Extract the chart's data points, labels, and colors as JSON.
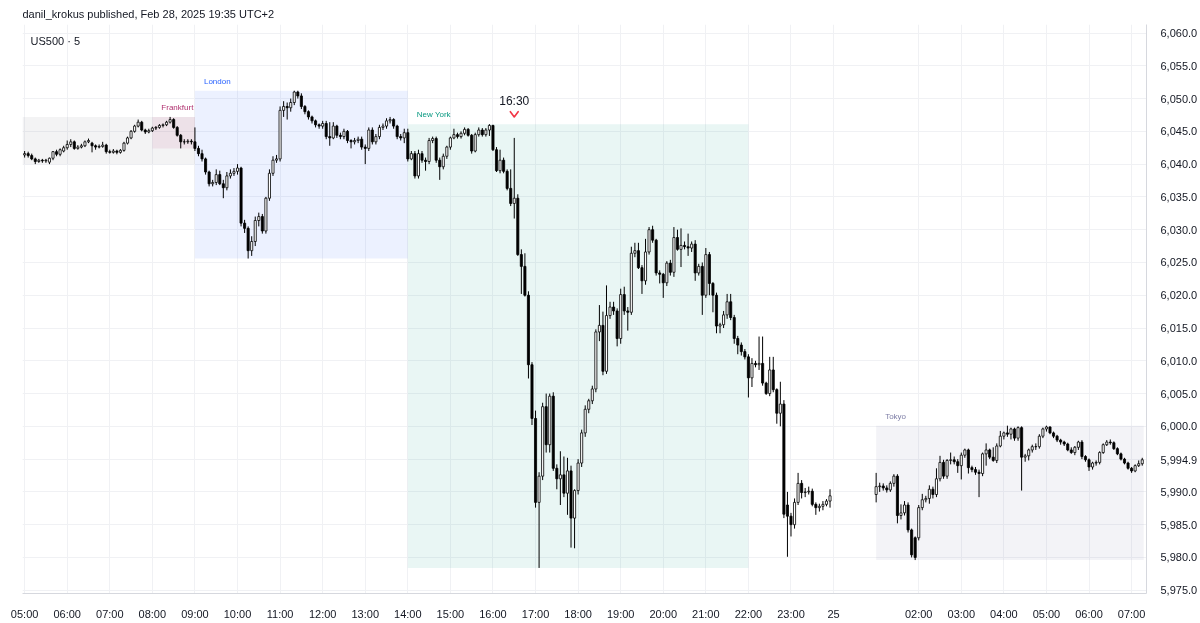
{
  "chart_data": {
    "type": "candlestick",
    "title": "US500 · 5",
    "annotations": [
      "danil_krokus published, Feb 28, 2025 19:35 UTC+2",
      {
        "text": "16:30",
        "x": "2025-02-24T16:30",
        "y": 6044.0
      }
    ],
    "xlim": [
      "2025-02-24T04:57",
      "2025-02-25T07:21"
    ],
    "ylim": [
      5974.5,
      6061.3
    ],
    "xticks": [
      {
        "value": "2025-02-24T05:00",
        "label": "05:00"
      },
      {
        "value": "2025-02-24T06:00",
        "label": "06:00"
      },
      {
        "value": "2025-02-24T07:00",
        "label": "07:00"
      },
      {
        "value": "2025-02-24T08:00",
        "label": "08:00"
      },
      {
        "value": "2025-02-24T09:00",
        "label": "09:00"
      },
      {
        "value": "2025-02-24T10:00",
        "label": "10:00"
      },
      {
        "value": "2025-02-24T11:00",
        "label": "11:00"
      },
      {
        "value": "2025-02-24T12:00",
        "label": "12:00"
      },
      {
        "value": "2025-02-24T13:00",
        "label": "13:00"
      },
      {
        "value": "2025-02-24T14:00",
        "label": "14:00"
      },
      {
        "value": "2025-02-24T15:00",
        "label": "15:00"
      },
      {
        "value": "2025-02-24T16:00",
        "label": "16:00"
      },
      {
        "value": "2025-02-24T17:00",
        "label": "17:00"
      },
      {
        "value": "2025-02-24T18:00",
        "label": "18:00"
      },
      {
        "value": "2025-02-24T19:00",
        "label": "19:00"
      },
      {
        "value": "2025-02-24T20:00",
        "label": "20:00"
      },
      {
        "value": "2025-02-24T21:00",
        "label": "21:00"
      },
      {
        "value": "2025-02-24T22:00",
        "label": "22:00"
      },
      {
        "value": "2025-02-24T23:00",
        "label": "23:00"
      },
      {
        "value": "2025-02-25",
        "label": "25"
      },
      {
        "value": "2025-02-25T02:00",
        "label": "02:00"
      },
      {
        "value": "2025-02-25T03:00",
        "label": "03:00"
      },
      {
        "value": "2025-02-25T04:00",
        "label": "04:00"
      },
      {
        "value": "2025-02-25T05:00",
        "label": "05:00"
      },
      {
        "value": "2025-02-25T06:00",
        "label": "06:00"
      },
      {
        "value": "2025-02-25T07:00",
        "label": "07:00"
      }
    ],
    "yticks": [
      {
        "value": 5975,
        "label": "5,975.0"
      },
      {
        "value": 5980,
        "label": "5,980.0"
      },
      {
        "value": 5985,
        "label": "5,985.0"
      },
      {
        "value": 5990,
        "label": "5,990.0"
      },
      {
        "value": 5994.9,
        "label": "5,994.9"
      },
      {
        "value": 5995,
        "label": null
      },
      {
        "value": 6000,
        "label": "6,000.0"
      },
      {
        "value": 6005,
        "label": "6,005.0"
      },
      {
        "value": 6010,
        "label": "6,010.0"
      },
      {
        "value": 6015,
        "label": "6,015.0"
      },
      {
        "value": 6020,
        "label": "6,020.0"
      },
      {
        "value": 6025,
        "label": "6,025.0"
      },
      {
        "value": 6030,
        "label": "6,030.0"
      },
      {
        "value": 6035,
        "label": "6,035.0"
      },
      {
        "value": 6040,
        "label": "6,040.0"
      },
      {
        "value": 6045,
        "label": "6,045.0"
      },
      {
        "value": 6050,
        "label": "6,050.0"
      },
      {
        "value": 6055,
        "label": "6,055.0"
      },
      {
        "value": 6060,
        "label": "6,060.0"
      }
    ],
    "grid": true,
    "color": "#000000",
    "bands": [
      {
        "axis": "x",
        "from": "2025-02-24T04:57",
        "to": "2025-02-24T09:00",
        "color": "#787b86"
      },
      {
        "axis": "x",
        "from": "2025-02-24T08:00",
        "to": "2025-02-24T09:00",
        "label": "Frankfurt",
        "color": "#b0316f"
      },
      {
        "axis": "x",
        "from": "2025-02-24T09:00",
        "to": "2025-02-24T14:00",
        "label": "London",
        "color": "#2962ff"
      },
      {
        "axis": "x",
        "from": "2025-02-24T14:00",
        "to": "2025-02-24T22:00",
        "label": "New York",
        "color": "#089981"
      },
      {
        "axis": "x",
        "from": "2025-02-25T01:00",
        "to": "2025-02-25T07:17",
        "label": "Tokyo",
        "color": "#7e7ea6"
      }
    ],
    "x": [
      "2025-02-24T05:00",
      "2025-02-24T05:05",
      "2025-02-24T05:10",
      "2025-02-24T05:15",
      "2025-02-24T05:20",
      "2025-02-24T05:25",
      "2025-02-24T05:30",
      "2025-02-24T05:35",
      "2025-02-24T05:40",
      "2025-02-24T05:45",
      "2025-02-24T05:50",
      "2025-02-24T05:55",
      "2025-02-24T06:00",
      "2025-02-24T06:05",
      "2025-02-24T06:10",
      "2025-02-24T06:15",
      "2025-02-24T06:20",
      "2025-02-24T06:25",
      "2025-02-24T06:30",
      "2025-02-24T06:35",
      "2025-02-24T06:40",
      "2025-02-24T06:45",
      "2025-02-24T06:50",
      "2025-02-24T06:55",
      "2025-02-24T07:00",
      "2025-02-24T07:05",
      "2025-02-24T07:10",
      "2025-02-24T07:15",
      "2025-02-24T07:20",
      "2025-02-24T07:25",
      "2025-02-24T07:30",
      "2025-02-24T07:35",
      "2025-02-24T07:40",
      "2025-02-24T07:45",
      "2025-02-24T07:50",
      "2025-02-24T07:55",
      "2025-02-24T08:00",
      "2025-02-24T08:05",
      "2025-02-24T08:10",
      "2025-02-24T08:15",
      "2025-02-24T08:20",
      "2025-02-24T08:25",
      "2025-02-24T08:30",
      "2025-02-24T08:35",
      "2025-02-24T08:40",
      "2025-02-24T08:45",
      "2025-02-24T08:50",
      "2025-02-24T08:55",
      "2025-02-24T09:00",
      "2025-02-24T09:05",
      "2025-02-24T09:10",
      "2025-02-24T09:15",
      "2025-02-24T09:20",
      "2025-02-24T09:25",
      "2025-02-24T09:30",
      "2025-02-24T09:35",
      "2025-02-24T09:40",
      "2025-02-24T09:45",
      "2025-02-24T09:50",
      "2025-02-24T09:55",
      "2025-02-24T10:00",
      "2025-02-24T10:05",
      "2025-02-24T10:10",
      "2025-02-24T10:15",
      "2025-02-24T10:20",
      "2025-02-24T10:25",
      "2025-02-24T10:30",
      "2025-02-24T10:35",
      "2025-02-24T10:40",
      "2025-02-24T10:45",
      "2025-02-24T10:50",
      "2025-02-24T10:55",
      "2025-02-24T11:00",
      "2025-02-24T11:05",
      "2025-02-24T11:10",
      "2025-02-24T11:15",
      "2025-02-24T11:20",
      "2025-02-24T11:25",
      "2025-02-24T11:30",
      "2025-02-24T11:35",
      "2025-02-24T11:40",
      "2025-02-24T11:45",
      "2025-02-24T11:50",
      "2025-02-24T11:55",
      "2025-02-24T12:00",
      "2025-02-24T12:05",
      "2025-02-24T12:10",
      "2025-02-24T12:15",
      "2025-02-24T12:20",
      "2025-02-24T12:25",
      "2025-02-24T12:30",
      "2025-02-24T12:35",
      "2025-02-24T12:40",
      "2025-02-24T12:45",
      "2025-02-24T12:50",
      "2025-02-24T12:55",
      "2025-02-24T13:00",
      "2025-02-24T13:05",
      "2025-02-24T13:10",
      "2025-02-24T13:15",
      "2025-02-24T13:20",
      "2025-02-24T13:25",
      "2025-02-24T13:30",
      "2025-02-24T13:35",
      "2025-02-24T13:40",
      "2025-02-24T13:45",
      "2025-02-24T13:50",
      "2025-02-24T13:55",
      "2025-02-24T14:00",
      "2025-02-24T14:05",
      "2025-02-24T14:10",
      "2025-02-24T14:15",
      "2025-02-24T14:20",
      "2025-02-24T14:25",
      "2025-02-24T14:30",
      "2025-02-24T14:35",
      "2025-02-24T14:40",
      "2025-02-24T14:45",
      "2025-02-24T14:50",
      "2025-02-24T14:55",
      "2025-02-24T15:00",
      "2025-02-24T15:05",
      "2025-02-24T15:10",
      "2025-02-24T15:15",
      "2025-02-24T15:20",
      "2025-02-24T15:25",
      "2025-02-24T15:30",
      "2025-02-24T15:35",
      "2025-02-24T15:40",
      "2025-02-24T15:45",
      "2025-02-24T15:50",
      "2025-02-24T15:55",
      "2025-02-24T16:00",
      "2025-02-24T16:05",
      "2025-02-24T16:10",
      "2025-02-24T16:15",
      "2025-02-24T16:20",
      "2025-02-24T16:25",
      "2025-02-24T16:30",
      "2025-02-24T16:35",
      "2025-02-24T16:40",
      "2025-02-24T16:45",
      "2025-02-24T16:50",
      "2025-02-24T16:55",
      "2025-02-24T17:00",
      "2025-02-24T17:05",
      "2025-02-24T17:10",
      "2025-02-24T17:15",
      "2025-02-24T17:20",
      "2025-02-24T17:25",
      "2025-02-24T17:30",
      "2025-02-24T17:35",
      "2025-02-24T17:40",
      "2025-02-24T17:45",
      "2025-02-24T17:50",
      "2025-02-24T17:55",
      "2025-02-24T18:00",
      "2025-02-24T18:05",
      "2025-02-24T18:10",
      "2025-02-24T18:15",
      "2025-02-24T18:20",
      "2025-02-24T18:25",
      "2025-02-24T18:30",
      "2025-02-24T18:35",
      "2025-02-24T18:40",
      "2025-02-24T18:45",
      "2025-02-24T18:50",
      "2025-02-24T18:55",
      "2025-02-24T19:00",
      "2025-02-24T19:05",
      "2025-02-24T19:10",
      "2025-02-24T19:15",
      "2025-02-24T19:20",
      "2025-02-24T19:25",
      "2025-02-24T19:30",
      "2025-02-24T19:35",
      "2025-02-24T19:40",
      "2025-02-24T19:45",
      "2025-02-24T19:50",
      "2025-02-24T19:55",
      "2025-02-24T20:00",
      "2025-02-24T20:05",
      "2025-02-24T20:10",
      "2025-02-24T20:15",
      "2025-02-24T20:20",
      "2025-02-24T20:25",
      "2025-02-24T20:30",
      "2025-02-24T20:35",
      "2025-02-24T20:40",
      "2025-02-24T20:45",
      "2025-02-24T20:50",
      "2025-02-24T20:55",
      "2025-02-24T21:00",
      "2025-02-24T21:05",
      "2025-02-24T21:10",
      "2025-02-24T21:15",
      "2025-02-24T21:20",
      "2025-02-24T21:25",
      "2025-02-24T21:30",
      "2025-02-24T21:35",
      "2025-02-24T21:40",
      "2025-02-24T21:45",
      "2025-02-24T21:50",
      "2025-02-24T21:55",
      "2025-02-24T22:00",
      "2025-02-24T22:05",
      "2025-02-24T22:10",
      "2025-02-24T22:15",
      "2025-02-24T22:20",
      "2025-02-24T22:25",
      "2025-02-24T22:30",
      "2025-02-24T22:35",
      "2025-02-24T22:40",
      "2025-02-24T22:45",
      "2025-02-24T22:50",
      "2025-02-24T22:55",
      "2025-02-24T23:00",
      "2025-02-24T23:05",
      "2025-02-24T23:10",
      "2025-02-24T23:15",
      "2025-02-24T23:20",
      "2025-02-24T23:25",
      "2025-02-24T23:30",
      "2025-02-24T23:35",
      "2025-02-24T23:40",
      "2025-02-24T23:45",
      "2025-02-24T23:50",
      "2025-02-24T23:55",
      "2025-02-25T01:00",
      "2025-02-25T01:05",
      "2025-02-25T01:10",
      "2025-02-25T01:15",
      "2025-02-25T01:20",
      "2025-02-25T01:25",
      "2025-02-25T01:30",
      "2025-02-25T01:35",
      "2025-02-25T01:40",
      "2025-02-25T01:45",
      "2025-02-25T01:50",
      "2025-02-25T01:55",
      "2025-02-25T02:00",
      "2025-02-25T02:05",
      "2025-02-25T02:10",
      "2025-02-25T02:15",
      "2025-02-25T02:20",
      "2025-02-25T02:25",
      "2025-02-25T02:30",
      "2025-02-25T02:35",
      "2025-02-25T02:40",
      "2025-02-25T02:45",
      "2025-02-25T02:50",
      "2025-02-25T02:55",
      "2025-02-25T03:00",
      "2025-02-25T03:05",
      "2025-02-25T03:10",
      "2025-02-25T03:15",
      "2025-02-25T03:20",
      "2025-02-25T03:25",
      "2025-02-25T03:30",
      "2025-02-25T03:35",
      "2025-02-25T03:40",
      "2025-02-25T03:45",
      "2025-02-25T03:50",
      "2025-02-25T03:55",
      "2025-02-25T04:00",
      "2025-02-25T04:05",
      "2025-02-25T04:10",
      "2025-02-25T04:15",
      "2025-02-25T04:20",
      "2025-02-25T04:25",
      "2025-02-25T04:30",
      "2025-02-25T04:35",
      "2025-02-25T04:40",
      "2025-02-25T04:45",
      "2025-02-25T04:50",
      "2025-02-25T04:55",
      "2025-02-25T05:00",
      "2025-02-25T05:05",
      "2025-02-25T05:10",
      "2025-02-25T05:15",
      "2025-02-25T05:20",
      "2025-02-25T05:25",
      "2025-02-25T05:30",
      "2025-02-25T05:35",
      "2025-02-25T05:40",
      "2025-02-25T05:45",
      "2025-02-25T05:50",
      "2025-02-25T05:55",
      "2025-02-25T06:00",
      "2025-02-25T06:05",
      "2025-02-25T06:10",
      "2025-02-25T06:15",
      "2025-02-25T06:20",
      "2025-02-25T06:25",
      "2025-02-25T06:30",
      "2025-02-25T06:35",
      "2025-02-25T06:40",
      "2025-02-25T06:45",
      "2025-02-25T06:50",
      "2025-02-25T06:55",
      "2025-02-25T07:00",
      "2025-02-25T07:05",
      "2025-02-25T07:10",
      "2025-02-25T07:15"
    ],
    "ohlc": [
      [
        6041.4,
        6042.0,
        6041.0,
        6041.6
      ],
      [
        6041.6,
        6041.9,
        6041.0,
        6041.3
      ],
      [
        6041.3,
        6041.6,
        6040.6,
        6040.8
      ],
      [
        6040.8,
        6041.0,
        6040.0,
        6040.4
      ],
      [
        6040.4,
        6040.8,
        6040.2,
        6040.6
      ],
      [
        6040.6,
        6040.8,
        6040.2,
        6040.5
      ],
      [
        6040.5,
        6040.8,
        6040.2,
        6040.6
      ],
      [
        6040.3,
        6041.0,
        6040.0,
        6040.9
      ],
      [
        6040.9,
        6042.0,
        6040.6,
        6041.9
      ],
      [
        6041.9,
        6042.2,
        6041.2,
        6041.5
      ],
      [
        6041.5,
        6042.4,
        6041.2,
        6042.2
      ],
      [
        6042.0,
        6042.8,
        6041.8,
        6042.5
      ],
      [
        6042.5,
        6043.6,
        6042.2,
        6043.0
      ],
      [
        6043.0,
        6043.8,
        6042.6,
        6043.4
      ],
      [
        6043.4,
        6043.6,
        6042.2,
        6042.4
      ],
      [
        6042.4,
        6042.9,
        6042.2,
        6042.6
      ],
      [
        6042.6,
        6043.1,
        6042.4,
        6042.8
      ],
      [
        6042.8,
        6043.6,
        6042.6,
        6043.4
      ],
      [
        6043.4,
        6043.9,
        6043.2,
        6043.6
      ],
      [
        6043.2,
        6043.4,
        6041.8,
        6042.8
      ],
      [
        6042.8,
        6043.0,
        6042.2,
        6042.6
      ],
      [
        6042.6,
        6043.0,
        6042.4,
        6042.7
      ],
      [
        6042.7,
        6043.4,
        6042.5,
        6042.9
      ],
      [
        6042.9,
        6043.1,
        6041.6,
        6041.9
      ],
      [
        6041.9,
        6042.2,
        6041.6,
        6041.8
      ],
      [
        6041.8,
        6042.3,
        6041.6,
        6042.0
      ],
      [
        6042.0,
        6042.2,
        6041.5,
        6041.8
      ],
      [
        6041.8,
        6042.3,
        6041.6,
        6042.1
      ],
      [
        6042.1,
        6043.4,
        6041.9,
        6043.2
      ],
      [
        6043.2,
        6044.2,
        6043.0,
        6044.0
      ],
      [
        6044.0,
        6045.2,
        6043.8,
        6045.0
      ],
      [
        6045.0,
        6046.0,
        6044.8,
        6045.8
      ],
      [
        6045.8,
        6046.8,
        6045.6,
        6046.4
      ],
      [
        6046.4,
        6046.6,
        6045.0,
        6045.2
      ],
      [
        6045.2,
        6045.4,
        6044.6,
        6044.9
      ],
      [
        6044.9,
        6045.4,
        6044.7,
        6045.1
      ],
      [
        6045.1,
        6045.7,
        6044.9,
        6045.5
      ],
      [
        6045.5,
        6045.8,
        6045.2,
        6045.6
      ],
      [
        6045.6,
        6046.1,
        6045.4,
        6045.9
      ],
      [
        6045.9,
        6046.2,
        6045.6,
        6046.0
      ],
      [
        6046.0,
        6046.6,
        6045.8,
        6046.4
      ],
      [
        6046.4,
        6047.2,
        6046.2,
        6046.8
      ],
      [
        6046.8,
        6047.0,
        6045.4,
        6045.6
      ],
      [
        6045.6,
        6045.8,
        6044.2,
        6044.4
      ],
      [
        6044.4,
        6044.6,
        6042.4,
        6043.4
      ],
      [
        6043.4,
        6043.8,
        6043.0,
        6043.4
      ],
      [
        6043.4,
        6043.8,
        6043.1,
        6043.5
      ],
      [
        6043.5,
        6043.8,
        6043.0,
        6043.4
      ],
      [
        6043.4,
        6045.6,
        6042.0,
        6042.4
      ],
      [
        6042.4,
        6042.8,
        6041.2,
        6041.6
      ],
      [
        6041.6,
        6042.2,
        6040.4,
        6040.8
      ],
      [
        6040.8,
        6041.0,
        6038.4,
        6038.8
      ],
      [
        6038.8,
        6039.0,
        6036.6,
        6037.0
      ],
      [
        6037.0,
        6037.6,
        6036.6,
        6037.2
      ],
      [
        6037.2,
        6039.2,
        6036.8,
        6038.4
      ],
      [
        6038.4,
        6039.0,
        6036.8,
        6037.0
      ],
      [
        6037.0,
        6037.6,
        6034.8,
        6036.4
      ],
      [
        6036.4,
        6038.8,
        6036.0,
        6038.2
      ],
      [
        6038.2,
        6039.2,
        6037.8,
        6038.6
      ],
      [
        6038.6,
        6039.4,
        6038.2,
        6038.9
      ],
      [
        6038.9,
        6040.0,
        6038.4,
        6039.4
      ],
      [
        6039.4,
        6039.6,
        6030.5,
        6031.0
      ],
      [
        6031.0,
        6031.5,
        6029.5,
        6030.2
      ],
      [
        6030.2,
        6030.5,
        6025.6,
        6026.8
      ],
      [
        6026.8,
        6029.0,
        6026.0,
        6028.2
      ],
      [
        6028.2,
        6032.0,
        6027.5,
        6031.4
      ],
      [
        6031.4,
        6032.6,
        6030.5,
        6032.0
      ],
      [
        6032.0,
        6032.4,
        6029.4,
        6029.8
      ],
      [
        6029.8,
        6035.0,
        6029.4,
        6034.8
      ],
      [
        6034.8,
        6039.2,
        6034.4,
        6038.6
      ],
      [
        6038.6,
        6041.2,
        6038.2,
        6040.6
      ],
      [
        6040.6,
        6041.4,
        6040.2,
        6040.8
      ],
      [
        6040.8,
        6048.8,
        6040.4,
        6048.2
      ],
      [
        6048.2,
        6049.6,
        6047.2,
        6048.8
      ],
      [
        6048.8,
        6049.4,
        6046.8,
        6048.6
      ],
      [
        6048.6,
        6050.0,
        6048.0,
        6049.4
      ],
      [
        6049.4,
        6051.2,
        6049.0,
        6051.0
      ],
      [
        6051.0,
        6051.2,
        6050.0,
        6050.4
      ],
      [
        6050.4,
        6050.8,
        6048.4,
        6048.8
      ],
      [
        6048.8,
        6049.0,
        6047.6,
        6048.0
      ],
      [
        6048.0,
        6048.2,
        6046.8,
        6047.2
      ],
      [
        6047.2,
        6047.4,
        6046.2,
        6046.6
      ],
      [
        6046.6,
        6046.8,
        6045.6,
        6046.0
      ],
      [
        6046.0,
        6046.2,
        6045.4,
        6045.8
      ],
      [
        6045.8,
        6046.6,
        6045.4,
        6046.2
      ],
      [
        6046.2,
        6046.6,
        6043.8,
        6044.2
      ],
      [
        6044.2,
        6046.4,
        6042.8,
        6044.0
      ],
      [
        6044.0,
        6046.4,
        6043.8,
        6045.8
      ],
      [
        6045.8,
        6046.0,
        6044.0,
        6044.4
      ],
      [
        6044.4,
        6044.8,
        6043.8,
        6044.2
      ],
      [
        6044.2,
        6045.4,
        6043.8,
        6045.0
      ],
      [
        6045.0,
        6045.2,
        6043.2,
        6043.6
      ],
      [
        6043.6,
        6043.8,
        6042.4,
        6043.4
      ],
      [
        6043.4,
        6044.0,
        6043.0,
        6043.6
      ],
      [
        6043.6,
        6044.2,
        6043.2,
        6043.8
      ],
      [
        6043.8,
        6044.2,
        6042.2,
        6042.6
      ],
      [
        6042.6,
        6043.0,
        6040.0,
        6042.4
      ],
      [
        6042.4,
        6045.6,
        6042.0,
        6045.2
      ],
      [
        6045.2,
        6045.6,
        6043.0,
        6043.4
      ],
      [
        6043.4,
        6044.6,
        6043.0,
        6044.2
      ],
      [
        6044.2,
        6046.0,
        6043.8,
        6045.6
      ],
      [
        6045.6,
        6046.2,
        6045.2,
        6045.8
      ],
      [
        6045.8,
        6047.0,
        6045.4,
        6046.6
      ],
      [
        6046.6,
        6047.2,
        6046.2,
        6046.8
      ],
      [
        6046.8,
        6047.0,
        6045.4,
        6045.8
      ],
      [
        6045.8,
        6046.0,
        6043.8,
        6044.2
      ],
      [
        6044.2,
        6044.6,
        6043.6,
        6044.0
      ],
      [
        6044.0,
        6045.4,
        6043.2,
        6044.8
      ],
      [
        6044.8,
        6045.4,
        6040.4,
        6040.8
      ],
      [
        6040.8,
        6042.0,
        6040.6,
        6041.6
      ],
      [
        6041.6,
        6042.0,
        6037.8,
        6038.2
      ],
      [
        6038.2,
        6042.2,
        6037.8,
        6041.6
      ],
      [
        6041.6,
        6042.0,
        6040.2,
        6040.6
      ],
      [
        6040.6,
        6041.0,
        6039.0,
        6040.4
      ],
      [
        6040.4,
        6044.0,
        6040.0,
        6043.6
      ],
      [
        6043.6,
        6044.2,
        6043.2,
        6043.9
      ],
      [
        6043.9,
        6044.2,
        6040.2,
        6040.6
      ],
      [
        6040.6,
        6041.0,
        6037.6,
        6039.6
      ],
      [
        6039.6,
        6041.6,
        6039.2,
        6041.2
      ],
      [
        6041.2,
        6042.8,
        6040.8,
        6042.6
      ],
      [
        6042.6,
        6044.2,
        6042.2,
        6044.0
      ],
      [
        6044.0,
        6045.4,
        6043.8,
        6044.5
      ],
      [
        6044.5,
        6044.8,
        6043.9,
        6044.2
      ],
      [
        6044.2,
        6045.0,
        6043.9,
        6044.7
      ],
      [
        6044.7,
        6045.6,
        6044.4,
        6045.3
      ],
      [
        6045.3,
        6045.5,
        6044.2,
        6044.4
      ],
      [
        6044.4,
        6044.6,
        6041.6,
        6042.0
      ],
      [
        6042.0,
        6044.8,
        6041.8,
        6044.5
      ],
      [
        6044.5,
        6045.6,
        6044.2,
        6045.2
      ],
      [
        6045.2,
        6045.5,
        6044.2,
        6044.5
      ],
      [
        6044.5,
        6045.5,
        6044.2,
        6045.2
      ],
      [
        6045.2,
        6046.1,
        6044.3,
        6045.9
      ],
      [
        6045.9,
        6046.0,
        6042.0,
        6042.2
      ],
      [
        6042.2,
        6042.6,
        6038.8,
        6039.0
      ],
      [
        6039.0,
        6042.2,
        6038.6,
        6040.6
      ],
      [
        6040.6,
        6041.0,
        6038.6,
        6038.9
      ],
      [
        6038.9,
        6039.2,
        6036.0,
        6036.3
      ],
      [
        6036.3,
        6039.2,
        6033.6,
        6034.0
      ],
      [
        6034.0,
        6044.0,
        6031.7,
        6034.8
      ],
      [
        6034.8,
        6035.4,
        6026.0,
        6026.2
      ],
      [
        6026.2,
        6027.0,
        6020.2,
        6024.4
      ],
      [
        6024.4,
        6026.4,
        6019.8,
        6020.0
      ],
      [
        6020.0,
        6020.6,
        6007.3,
        6009.4
      ],
      [
        6009.4,
        6009.8,
        6000.2,
        6001.2
      ],
      [
        6001.2,
        6002.4,
        5987.6,
        5988.4
      ],
      [
        5988.4,
        5993.0,
        5978.4,
        5992.4
      ],
      [
        5992.4,
        6003.6,
        5991.8,
        6003.0
      ],
      [
        6003.0,
        6005.0,
        5996.0,
        5997.2
      ],
      [
        5997.2,
        6005.0,
        5996.0,
        6004.6
      ],
      [
        6004.6,
        6005.2,
        5993.2,
        5993.6
      ],
      [
        5993.6,
        5994.2,
        5990.4,
        5992.0
      ],
      [
        5992.0,
        5996.2,
        5988.0,
        5992.6
      ],
      [
        5992.6,
        5995.4,
        5989.2,
        5989.8
      ],
      [
        5989.8,
        5995.2,
        5986.5,
        5993.2
      ],
      [
        5993.2,
        5994.0,
        5981.5,
        5986.0
      ],
      [
        5986.0,
        5990.4,
        5981.4,
        5990.2
      ],
      [
        5990.2,
        5995.0,
        5989.6,
        5994.4
      ],
      [
        5994.4,
        5999.5,
        5993.8,
        5999.0
      ],
      [
        5999.0,
        6003.2,
        5998.4,
        6002.6
      ],
      [
        6002.6,
        6004.2,
        6002.0,
        6003.9
      ],
      [
        6003.9,
        6006.2,
        6003.4,
        6005.7
      ],
      [
        6005.7,
        6014.8,
        6005.2,
        6014.4
      ],
      [
        6014.4,
        6018.5,
        6013.0,
        6015.4
      ],
      [
        6015.4,
        6017.5,
        6007.8,
        6008.4
      ],
      [
        6008.4,
        6021.5,
        6008.0,
        6016.9
      ],
      [
        6016.9,
        6019.0,
        6016.4,
        6018.2
      ],
      [
        6018.2,
        6019.0,
        6017.0,
        6017.6
      ],
      [
        6017.6,
        6018.0,
        6012.2,
        6013.4
      ],
      [
        6013.4,
        6021.0,
        6012.6,
        6020.1
      ],
      [
        6020.1,
        6021.3,
        6017.0,
        6017.6
      ],
      [
        6017.6,
        6018.2,
        6014.6,
        6017.4
      ],
      [
        6017.4,
        6027.4,
        6017.0,
        6026.4
      ],
      [
        6026.4,
        6028.0,
        6025.8,
        6026.8
      ],
      [
        6026.8,
        6028.0,
        6024.0,
        6024.2
      ],
      [
        6024.2,
        6024.6,
        6020.2,
        6022.2
      ],
      [
        6022.2,
        6028.6,
        6021.6,
        6026.6
      ],
      [
        6026.6,
        6030.4,
        6026.2,
        6030.0
      ],
      [
        6030.0,
        6030.6,
        6028.0,
        6028.4
      ],
      [
        6028.4,
        6028.6,
        6023.0,
        6023.4
      ],
      [
        6023.4,
        6023.8,
        6021.8,
        6023.2
      ],
      [
        6023.2,
        6023.4,
        6019.6,
        6021.9
      ],
      [
        6021.9,
        6025.2,
        6021.4,
        6024.9
      ],
      [
        6024.9,
        6025.4,
        6023.0,
        6023.5
      ],
      [
        6023.5,
        6030.4,
        6022.8,
        6028.8
      ],
      [
        6028.8,
        6030.0,
        6026.8,
        6027.0
      ],
      [
        6027.0,
        6030.2,
        6024.3,
        6027.6
      ],
      [
        6027.6,
        6028.2,
        6027.0,
        6027.4
      ],
      [
        6027.4,
        6029.4,
        6026.0,
        6027.2
      ],
      [
        6027.2,
        6028.2,
        6026.6,
        6027.8
      ],
      [
        6027.8,
        6028.4,
        6022.2,
        6023.4
      ],
      [
        6023.4,
        6024.8,
        6023.0,
        6024.4
      ],
      [
        6024.4,
        6025.0,
        6017.0,
        6020.0
      ],
      [
        6020.0,
        6027.2,
        6019.6,
        6026.2
      ],
      [
        6026.2,
        6026.6,
        6020.0,
        6021.8
      ],
      [
        6021.8,
        6022.0,
        6017.4,
        6020.0
      ],
      [
        6020.0,
        6020.4,
        6014.2,
        6015.3
      ],
      [
        6015.3,
        6015.8,
        6014.2,
        6015.5
      ],
      [
        6015.5,
        6017.6,
        6015.0,
        6017.0
      ],
      [
        6017.0,
        6020.2,
        6016.4,
        6019.0
      ],
      [
        6019.0,
        6020.2,
        6016.2,
        6016.6
      ],
      [
        6016.6,
        6017.0,
        6012.6,
        6013.4
      ],
      [
        6013.4,
        6013.8,
        6011.0,
        6012.4
      ],
      [
        6012.4,
        6012.8,
        6010.8,
        6011.4
      ],
      [
        6011.4,
        6011.8,
        6010.2,
        6010.6
      ],
      [
        6010.6,
        6011.0,
        6004.4,
        6007.4
      ],
      [
        6007.4,
        6010.4,
        6006.0,
        6009.6
      ],
      [
        6009.6,
        6010.0,
        6009.0,
        6009.4
      ],
      [
        6009.4,
        6013.7,
        6008.6,
        6009.6
      ],
      [
        6009.6,
        6013.7,
        6006.2,
        6006.6
      ],
      [
        6006.6,
        6006.8,
        6004.8,
        6005.0
      ],
      [
        6005.0,
        6010.6,
        6004.6,
        6008.6
      ],
      [
        6008.6,
        6010.6,
        6005.2,
        6005.6
      ],
      [
        6005.6,
        6005.8,
        6000.4,
        6002.0
      ],
      [
        6002.0,
        6006.8,
        6000.0,
        6003.4
      ],
      [
        6003.4,
        6004.0,
        5986.0,
        5986.6
      ],
      [
        5988.0,
        5990.0,
        5980.1,
        5986.3
      ],
      [
        5986.3,
        5986.8,
        5983.2,
        5985.0
      ],
      [
        5985.0,
        5989.0,
        5984.4,
        5988.4
      ],
      [
        5988.4,
        5992.9,
        5988.0,
        5991.3
      ],
      [
        5991.3,
        5991.8,
        5989.0,
        5989.9
      ],
      [
        5989.9,
        5990.6,
        5989.2,
        5990.0
      ],
      [
        5990.0,
        5990.8,
        5989.6,
        5990.1
      ],
      [
        5990.1,
        5990.5,
        5987.8,
        5988.1
      ],
      [
        5988.1,
        5988.4,
        5986.5,
        5987.6
      ],
      [
        5987.6,
        5988.2,
        5987.0,
        5987.8
      ],
      [
        5987.8,
        5988.6,
        5987.2,
        5988.1
      ],
      [
        5988.1,
        5988.9,
        5987.8,
        5988.6
      ],
      [
        5988.6,
        5990.4,
        5987.6,
        5989.4
      ],
      [
        5989.6,
        5992.9,
        5988.4,
        5990.8
      ],
      [
        5990.8,
        5991.4,
        5990.0,
        5990.9
      ],
      [
        5990.9,
        5991.3,
        5990.2,
        5990.6
      ],
      [
        5990.6,
        5991.0,
        5989.9,
        5990.3
      ],
      [
        5990.3,
        5991.6,
        5990.0,
        5991.3
      ],
      [
        5991.3,
        5992.7,
        5990.8,
        5992.4
      ],
      [
        5992.4,
        5992.7,
        5985.2,
        5986.4
      ],
      [
        5986.4,
        5988.1,
        5985.8,
        5986.8
      ],
      [
        5986.8,
        5988.6,
        5986.4,
        5988.0
      ],
      [
        5988.0,
        5988.4,
        5983.8,
        5984.2
      ],
      [
        5984.2,
        5984.4,
        5980.0,
        5980.4
      ],
      [
        5983.0,
        5983.2,
        5979.6,
        5980.0
      ],
      [
        5983.0,
        5988.0,
        5982.6,
        5987.6
      ],
      [
        5987.6,
        5989.7,
        5987.2,
        5988.8
      ],
      [
        5988.8,
        5989.4,
        5988.4,
        5989.0
      ],
      [
        5989.0,
        5991.0,
        5988.2,
        5990.4
      ],
      [
        5990.4,
        5990.8,
        5989.0,
        5989.6
      ],
      [
        5989.6,
        5993.6,
        5989.2,
        5992.0
      ],
      [
        5992.0,
        5995.5,
        5991.6,
        5994.5
      ],
      [
        5994.5,
        5994.9,
        5992.0,
        5992.4
      ],
      [
        5992.4,
        5995.0,
        5992.0,
        5994.8
      ],
      [
        5994.8,
        5996.0,
        5994.2,
        5994.9
      ],
      [
        5994.9,
        5995.4,
        5994.2,
        5994.6
      ],
      [
        5994.6,
        5995.0,
        5992.9,
        5994.0
      ],
      [
        5994.0,
        5996.0,
        5991.9,
        5995.6
      ],
      [
        5995.6,
        5996.6,
        5995.2,
        5996.4
      ],
      [
        5996.4,
        5996.6,
        5992.8,
        5993.7
      ],
      [
        5993.7,
        5994.0,
        5993.0,
        5993.4
      ],
      [
        5993.4,
        5993.8,
        5992.6,
        5993.0
      ],
      [
        5993.0,
        5993.4,
        5989.2,
        5992.8
      ],
      [
        5992.8,
        5996.0,
        5992.4,
        5995.8
      ],
      [
        5995.8,
        5997.4,
        5994.0,
        5996.4
      ],
      [
        5996.4,
        5996.6,
        5995.0,
        5995.3
      ],
      [
        5995.3,
        5996.8,
        5994.6,
        5994.8
      ],
      [
        5994.8,
        5997.4,
        5994.4,
        5997.0
      ],
      [
        5997.0,
        5999.3,
        5996.8,
        5998.5
      ],
      [
        5998.5,
        5999.2,
        5998.0,
        5999.0
      ],
      [
        5999.0,
        6000.1,
        5998.4,
        5998.8
      ],
      [
        5998.8,
        5999.8,
        5998.0,
        5999.6
      ],
      [
        5999.6,
        5999.8,
        5997.8,
        5998.2
      ],
      [
        5998.2,
        6000.0,
        5997.8,
        5999.8
      ],
      [
        5999.8,
        6000.0,
        5990.2,
        5995.3
      ],
      [
        5995.3,
        5995.8,
        5994.6,
        5995.5
      ],
      [
        5995.5,
        5996.6,
        5994.8,
        5996.4
      ],
      [
        5996.4,
        5997.2,
        5996.0,
        5996.9
      ],
      [
        5996.9,
        5997.4,
        5996.4,
        5996.9
      ],
      [
        5996.9,
        5998.8,
        5996.6,
        5998.5
      ],
      [
        5998.5,
        5999.8,
        5998.2,
        5999.6
      ],
      [
        5999.6,
        6000.1,
        5999.2,
        5999.9
      ],
      [
        5999.9,
        6000.0,
        5998.8,
        5999.0
      ],
      [
        5999.0,
        5999.2,
        5998.2,
        5998.5
      ],
      [
        5998.5,
        5998.7,
        5997.6,
        5997.9
      ],
      [
        5997.9,
        5998.1,
        5997.2,
        5997.6
      ],
      [
        5997.6,
        5997.8,
        5997.0,
        5997.3
      ],
      [
        5997.3,
        5997.5,
        5996.2,
        5996.4
      ],
      [
        5996.4,
        5996.8,
        5995.8,
        5996.0
      ],
      [
        5996.0,
        5997.0,
        5995.6,
        5996.8
      ],
      [
        5996.8,
        5997.8,
        5996.4,
        5997.6
      ],
      [
        5997.6,
        5997.9,
        5995.0,
        5995.4
      ],
      [
        5995.4,
        5995.6,
        5994.6,
        5994.9
      ],
      [
        5994.9,
        5995.1,
        5993.2,
        5993.8
      ],
      [
        5993.8,
        5994.6,
        5993.4,
        5994.4
      ],
      [
        5994.4,
        5994.8,
        5994.0,
        5994.5
      ],
      [
        5994.5,
        5996.2,
        5994.2,
        5996.0
      ],
      [
        5996.0,
        5997.4,
        5995.8,
        5997.2
      ],
      [
        5997.2,
        5997.9,
        5997.0,
        5997.6
      ],
      [
        5997.6,
        5998.0,
        5997.2,
        5997.5
      ],
      [
        5997.5,
        5997.7,
        5996.4,
        5996.6
      ],
      [
        5996.6,
        5996.8,
        5995.6,
        5995.8
      ],
      [
        5995.8,
        5996.0,
        5994.8,
        5995.0
      ],
      [
        5995.0,
        5995.2,
        5994.2,
        5994.4
      ],
      [
        5994.4,
        5994.6,
        5993.4,
        5993.6
      ],
      [
        5993.6,
        5993.8,
        5992.9,
        5993.2
      ],
      [
        5993.2,
        5994.2,
        5993.0,
        5994.0
      ],
      [
        5994.0,
        5994.8,
        5993.8,
        5994.3
      ],
      [
        5994.3,
        5995.2,
        5994.0,
        5994.9
      ]
    ]
  }
}
